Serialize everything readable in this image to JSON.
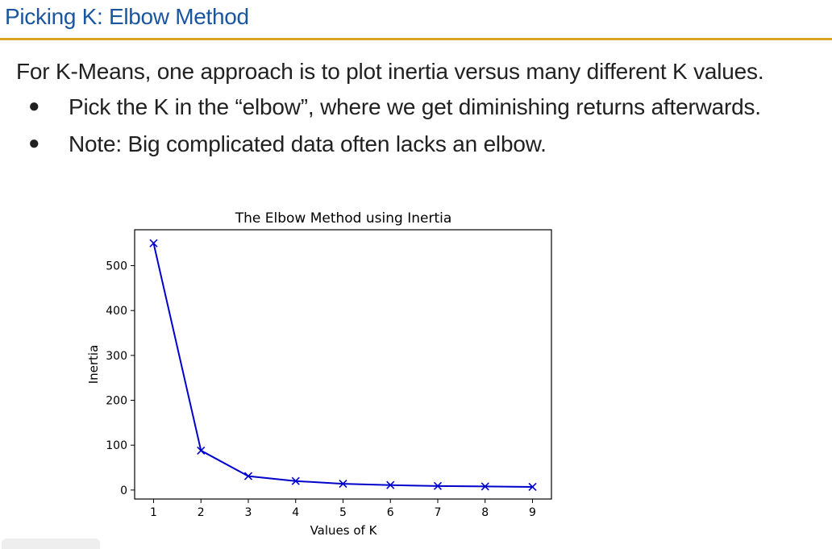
{
  "slide": {
    "title": "Picking K: Elbow Method",
    "intro": "For K-Means, one approach is to plot inertia versus many different K values.",
    "bullets": [
      "Pick the K in the “elbow”, where we get diminishing returns afterwards.",
      "Note: Big complicated data often lacks an elbow."
    ],
    "bullet_glyph": "●",
    "accent_color": "#d9a520",
    "title_color": "#1a56a0"
  },
  "chart_data": {
    "type": "line",
    "title": "The Elbow Method using Inertia",
    "xlabel": "Values of K",
    "ylabel": "Inertia",
    "x": [
      1,
      2,
      3,
      4,
      5,
      6,
      7,
      8,
      9
    ],
    "series": [
      {
        "values": [
          550,
          88,
          31,
          20,
          14,
          11,
          9,
          8,
          7
        ],
        "color": "#0000cc",
        "marker": "x"
      }
    ],
    "xticks": [
      1,
      2,
      3,
      4,
      5,
      6,
      7,
      8,
      9
    ],
    "yticks": [
      0,
      100,
      200,
      300,
      400,
      500
    ],
    "xlim": [
      0.6,
      9.4
    ],
    "ylim": [
      -20,
      580
    ],
    "grid": false
  }
}
